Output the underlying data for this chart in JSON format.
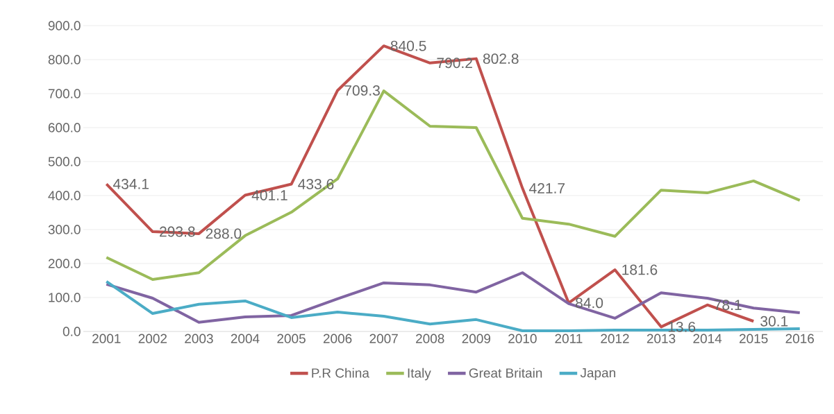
{
  "chart_data": {
    "type": "line",
    "categories": [
      "2001",
      "2002",
      "2003",
      "2004",
      "2005",
      "2006",
      "2007",
      "2008",
      "2009",
      "2010",
      "2011",
      "2012",
      "2013",
      "2014",
      "2015",
      "2016"
    ],
    "series": [
      {
        "name": "P.R China",
        "color": "#c0504d",
        "values": [
          434.1,
          293.8,
          288.0,
          401.1,
          433.6,
          709.3,
          840.5,
          790.2,
          802.8,
          421.7,
          84.0,
          181.6,
          13.6,
          78.1,
          30.1,
          null
        ],
        "value_labels": [
          "434.1",
          "293.8",
          "288.0",
          "401.1",
          "433.6",
          "709.3",
          "840.5",
          "790.2",
          "802.8",
          "421.7",
          "84.0",
          "181.6",
          "13.6",
          "78.1",
          "30.1",
          null
        ]
      },
      {
        "name": "Italy",
        "color": "#9bbb59",
        "values": [
          218,
          153,
          173,
          282,
          351,
          449,
          708,
          604,
          600,
          333,
          316,
          280,
          416,
          408,
          443,
          386
        ]
      },
      {
        "name": "Great Britain",
        "color": "#8064a2",
        "values": [
          139,
          98,
          27,
          43,
          47,
          96,
          143,
          137,
          116,
          173,
          82,
          39,
          114,
          98,
          69,
          55
        ]
      },
      {
        "name": "Japan",
        "color": "#4bacc6",
        "values": [
          147,
          53,
          80,
          90,
          41,
          57,
          45,
          22,
          35,
          2,
          2,
          4,
          4,
          4,
          6,
          8
        ]
      }
    ],
    "ylim": [
      0,
      900
    ],
    "yticks": [
      {
        "value": 0,
        "label": "0.0"
      },
      {
        "value": 100,
        "label": "100.0"
      },
      {
        "value": 200,
        "label": "200.0"
      },
      {
        "value": 300,
        "label": "300.0"
      },
      {
        "value": 400,
        "label": "400.0"
      },
      {
        "value": 500,
        "label": "500.0"
      },
      {
        "value": 600,
        "label": "600.0"
      },
      {
        "value": 700,
        "label": "700.0"
      },
      {
        "value": 800,
        "label": "800.0"
      },
      {
        "value": 900,
        "label": "900.0"
      }
    ],
    "grid": "y",
    "legend": "bottom",
    "line_style": "solid"
  }
}
